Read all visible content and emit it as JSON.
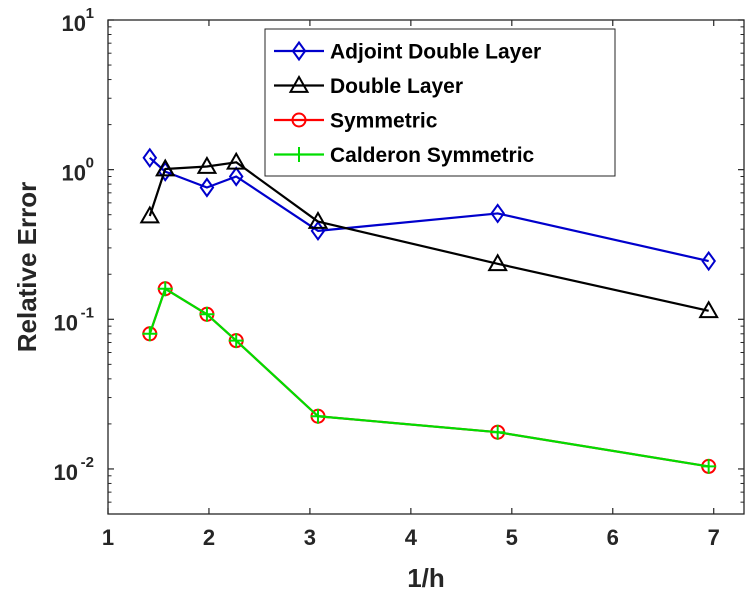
{
  "chart_data": {
    "type": "line",
    "xlabel": "1/h",
    "ylabel": "Relative Error",
    "xlim": [
      1,
      7.3
    ],
    "ylim": [
      0.005,
      10
    ],
    "yscale": "log",
    "grid": false,
    "legend_position": "top-right",
    "x_ticks": [
      {
        "value": 1,
        "label": "1"
      },
      {
        "value": 2,
        "label": "2"
      },
      {
        "value": 3,
        "label": "3"
      },
      {
        "value": 4,
        "label": "4"
      },
      {
        "value": 5,
        "label": "5"
      },
      {
        "value": 6,
        "label": "6"
      },
      {
        "value": 7,
        "label": "7"
      }
    ],
    "y_ticks": [
      {
        "value": 0.01,
        "base": "10",
        "exp": "-2"
      },
      {
        "value": 0.1,
        "base": "10",
        "exp": "-1"
      },
      {
        "value": 1,
        "base": "10",
        "exp": "0"
      },
      {
        "value": 10,
        "base": "10",
        "exp": "1"
      }
    ],
    "series": [
      {
        "name": "Adjoint Double Layer",
        "color": "#0000cc",
        "marker": "diamond",
        "x": [
          1.414,
          1.567,
          1.98,
          2.27,
          3.08,
          4.86,
          6.95
        ],
        "y": [
          1.2,
          0.97,
          0.76,
          0.9,
          0.39,
          0.51,
          0.245
        ]
      },
      {
        "name": "Double Layer",
        "color": "#000000",
        "marker": "triangle",
        "x": [
          1.414,
          1.567,
          1.98,
          2.27,
          3.08,
          4.86,
          6.95
        ],
        "y": [
          0.49,
          1.01,
          1.05,
          1.12,
          0.45,
          0.235,
          0.114
        ]
      },
      {
        "name": "Symmetric",
        "color": "#ff0000",
        "marker": "circle",
        "x": [
          1.414,
          1.567,
          1.98,
          2.27,
          3.08,
          4.86,
          6.95
        ],
        "y": [
          0.08,
          0.16,
          0.108,
          0.072,
          0.0225,
          0.0176,
          0.0104
        ]
      },
      {
        "name": "Calderon Symmetric",
        "color": "#00dd00",
        "marker": "plus",
        "x": [
          1.414,
          1.567,
          1.98,
          2.27,
          3.08,
          4.86,
          6.95
        ],
        "y": [
          0.08,
          0.16,
          0.108,
          0.072,
          0.0225,
          0.0176,
          0.0104
        ]
      }
    ]
  }
}
